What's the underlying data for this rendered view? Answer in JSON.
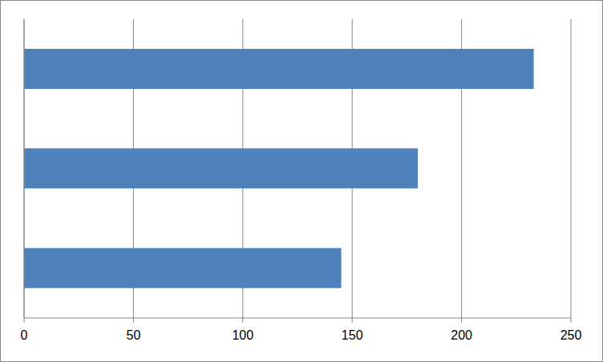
{
  "chart_data": {
    "type": "bar",
    "orientation": "horizontal",
    "categories": [
      null,
      null,
      null
    ],
    "values": [
      233,
      180,
      145
    ],
    "color": "#4f81bd",
    "xlim": [
      0,
      250
    ],
    "xticks": [
      0,
      50,
      100,
      150,
      200,
      250
    ],
    "grid": true,
    "tick_labels": "x"
  }
}
